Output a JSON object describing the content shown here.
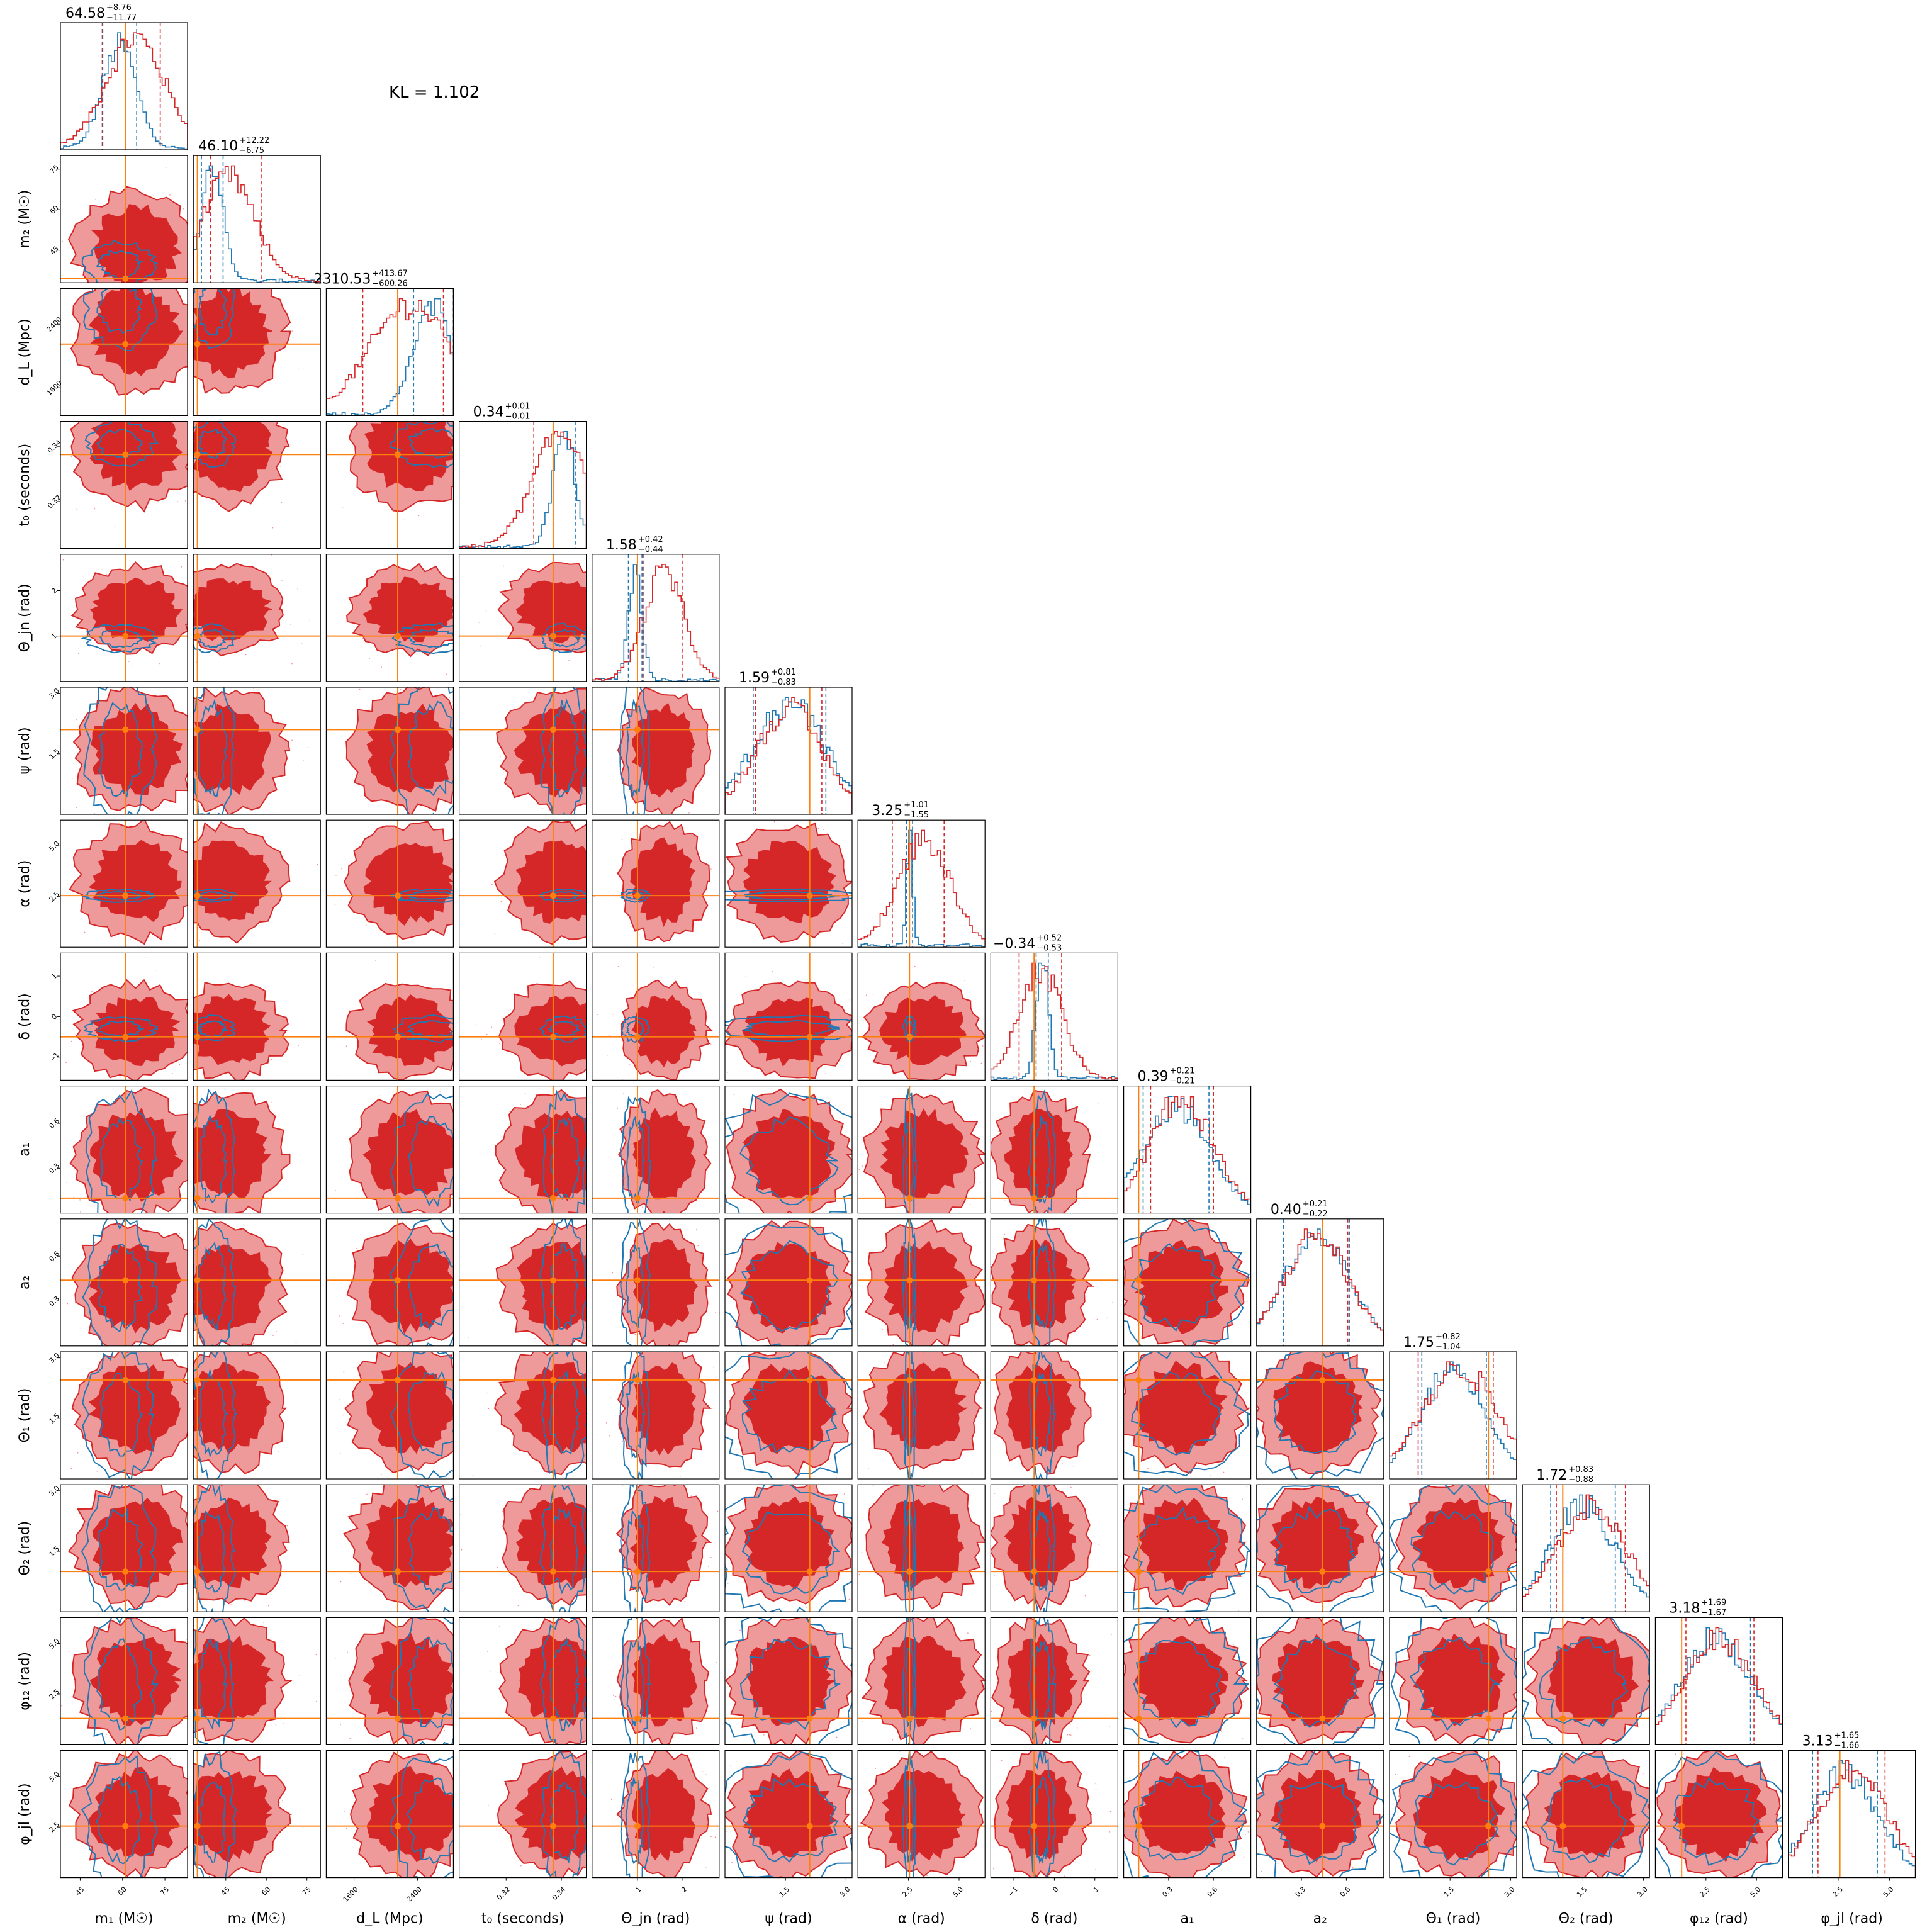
{
  "chart_data": {
    "type": "corner",
    "annotation": "KL = 1.102",
    "colors": {
      "series_a": "#d62728",
      "series_a_fill_outer": "#ee9a9a",
      "series_b": "#1f77b4",
      "truth": "#ff7f0e"
    },
    "parameters": [
      {
        "label": "m₁ (M☉)",
        "range": [
          38,
          83
        ],
        "ticks": [
          "45",
          "60",
          "75"
        ],
        "tick_values": [
          45,
          60,
          75
        ],
        "truth": 61.0,
        "median": 64.58,
        "plus": "+8.76",
        "minus": "−11.77",
        "title": "64.58",
        "b_median": 59.0,
        "b_width": 6.0
      },
      {
        "label": "m₂ (M☉)",
        "range": [
          33,
          80
        ],
        "ticks": [
          "45",
          "60",
          "75"
        ],
        "tick_values": [
          45,
          60,
          75
        ],
        "truth": 34.5,
        "median": 46.1,
        "plus": "+12.22",
        "minus": "−6.75",
        "title": "46.10",
        "b_median": 40.0,
        "b_width": 4.0
      },
      {
        "label": "d_L (Mpc)",
        "range": [
          1250,
          2850
        ],
        "ticks": [
          "1600",
          "2400"
        ],
        "tick_values": [
          1600,
          2400
        ],
        "truth": 2150,
        "median": 2310.53,
        "plus": "+413.67",
        "minus": "−600.26",
        "title": "2310.53",
        "b_median": 2600,
        "b_width": 250
      },
      {
        "label": "t₀ (seconds)",
        "range": [
          0.303,
          0.349
        ],
        "ticks": [
          "0.32",
          "0.34"
        ],
        "tick_values": [
          0.32,
          0.34
        ],
        "truth": 0.337,
        "median": 0.34,
        "plus": "+0.01",
        "minus": "−0.01",
        "title": "0.34",
        "b_median": 0.341,
        "b_width": 0.004
      },
      {
        "label": "Θ_jn (rad)",
        "range": [
          0.0,
          2.8
        ],
        "ticks": [
          "1",
          "2"
        ],
        "tick_values": [
          1,
          2
        ],
        "truth": 1.0,
        "median": 1.58,
        "plus": "+0.42",
        "minus": "−0.44",
        "title": "1.58",
        "b_median": 0.95,
        "b_width": 0.15
      },
      {
        "label": "ψ (rad)",
        "range": [
          0.0,
          3.15
        ],
        "ticks": [
          "1.5",
          "3.0"
        ],
        "tick_values": [
          1.5,
          3.0
        ],
        "truth": 2.1,
        "median": 1.59,
        "plus": "+0.81",
        "minus": "−0.83",
        "title": "1.59",
        "b_median": 1.6,
        "b_width": 0.9
      },
      {
        "label": "α (rad)",
        "range": [
          0.0,
          6.28
        ],
        "ticks": [
          "2.5",
          "5.0"
        ],
        "tick_values": [
          2.5,
          5.0
        ],
        "truth": 2.55,
        "median": 3.25,
        "plus": "+1.01",
        "minus": "−1.55",
        "title": "3.25",
        "b_median": 2.55,
        "b_width": 0.15
      },
      {
        "label": "δ (rad)",
        "range": [
          -1.57,
          1.57
        ],
        "ticks": [
          "−1",
          "0",
          "1"
        ],
        "tick_values": [
          -1,
          0,
          1
        ],
        "truth": -0.5,
        "median": -0.34,
        "plus": "+0.52",
        "minus": "−0.53",
        "title": "−0.34",
        "b_median": -0.3,
        "b_width": 0.15
      },
      {
        "label": "a₁",
        "range": [
          0.0,
          0.85
        ],
        "ticks": [
          "0.3",
          "0.6"
        ],
        "tick_values": [
          0.3,
          0.6
        ],
        "truth": 0.1,
        "median": 0.39,
        "plus": "+0.21",
        "minus": "−0.21",
        "title": "0.39",
        "b_median": 0.35,
        "b_width": 0.22
      },
      {
        "label": "a₂",
        "range": [
          0.0,
          0.85
        ],
        "ticks": [
          "0.3",
          "0.6"
        ],
        "tick_values": [
          0.3,
          0.6
        ],
        "truth": 0.44,
        "median": 0.4,
        "plus": "+0.21",
        "minus": "−0.22",
        "title": "0.40",
        "b_median": 0.4,
        "b_width": 0.22
      },
      {
        "label": "Θ₁ (rad)",
        "range": [
          0.0,
          3.15
        ],
        "ticks": [
          "1.5",
          "3.0"
        ],
        "tick_values": [
          1.5,
          3.0
        ],
        "truth": 2.45,
        "median": 1.75,
        "plus": "+0.82",
        "minus": "−1.04",
        "title": "1.75",
        "b_median": 1.6,
        "b_width": 0.8
      },
      {
        "label": "Θ₂ (rad)",
        "range": [
          0.0,
          3.15
        ],
        "ticks": [
          "1.5",
          "3.0"
        ],
        "tick_values": [
          1.5,
          3.0
        ],
        "truth": 1.0,
        "median": 1.72,
        "plus": "+0.83",
        "minus": "−0.88",
        "title": "1.72",
        "b_median": 1.5,
        "b_width": 0.8
      },
      {
        "label": "φ₁₂ (rad)",
        "range": [
          0.0,
          6.28
        ],
        "ticks": [
          "2.5",
          "5.0"
        ],
        "tick_values": [
          2.5,
          5.0
        ],
        "truth": 1.3,
        "median": 3.18,
        "plus": "+1.69",
        "minus": "−1.67",
        "title": "3.18",
        "b_median": 3.0,
        "b_width": 1.7
      },
      {
        "label": "φ_jl (rad)",
        "range": [
          0.0,
          6.28
        ],
        "ticks": [
          "2.5",
          "5.0"
        ],
        "tick_values": [
          2.5,
          5.0
        ],
        "truth": 2.55,
        "median": 3.13,
        "plus": "+1.65",
        "minus": "−1.66",
        "title": "3.13",
        "b_median": 2.8,
        "b_width": 1.6
      }
    ]
  }
}
